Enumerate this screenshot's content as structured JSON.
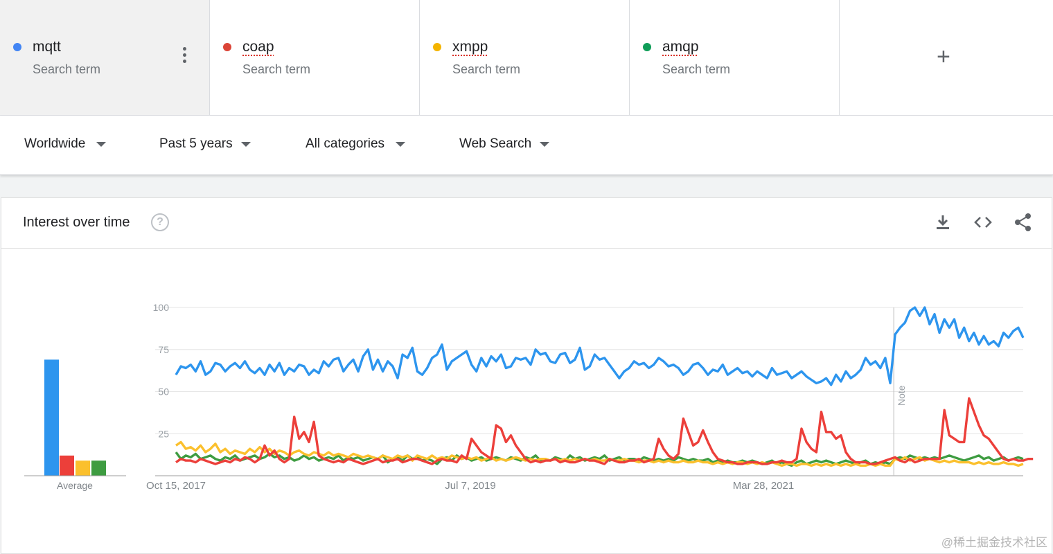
{
  "terms": [
    {
      "name": "mqtt",
      "sub": "Search term",
      "color": "#4285f4"
    },
    {
      "name": "coap",
      "sub": "Search term",
      "color": "#db4437"
    },
    {
      "name": "xmpp",
      "sub": "Search term",
      "color": "#f4b400"
    },
    {
      "name": "amqp",
      "sub": "Search term",
      "color": "#0f9d58"
    }
  ],
  "add_term": "+",
  "filters": {
    "region": "Worldwide",
    "time": "Past 5 years",
    "category": "All categories",
    "search_type": "Web Search"
  },
  "card": {
    "title": "Interest over time",
    "help": "?",
    "icons": [
      "download-icon",
      "embed-code-icon",
      "share-icon"
    ]
  },
  "chart_data": {
    "type": "line",
    "x_tick_labels": [
      "Oct 15, 2017",
      "Jul 7, 2019",
      "Mar 28, 2021"
    ],
    "y_ticks": [
      25,
      50,
      75,
      100
    ],
    "ylim": [
      0,
      100
    ],
    "note_label": "Note",
    "average_label": "Average",
    "averages": [
      {
        "name": "mqtt",
        "value": 69,
        "color": "#2d95ee"
      },
      {
        "name": "coap",
        "value": 12,
        "color": "#ec3f3a"
      },
      {
        "name": "xmpp",
        "value": 9,
        "color": "#fbc02d"
      },
      {
        "name": "amqp",
        "value": 9,
        "color": "#3e9c41"
      }
    ],
    "series": [
      {
        "name": "mqtt",
        "color": "#2d95ee",
        "values": [
          60,
          65,
          64,
          66,
          62,
          68,
          60,
          62,
          67,
          66,
          62,
          65,
          67,
          64,
          68,
          63,
          61,
          64,
          60,
          66,
          62,
          67,
          60,
          64,
          62,
          66,
          65,
          60,
          63,
          61,
          68,
          65,
          69,
          70,
          62,
          66,
          69,
          62,
          71,
          75,
          63,
          69,
          62,
          68,
          65,
          58,
          72,
          70,
          76,
          62,
          60,
          64,
          70,
          72,
          78,
          63,
          68,
          70,
          72,
          74,
          66,
          62,
          70,
          65,
          71,
          68,
          72,
          64,
          65,
          70,
          69,
          70,
          66,
          75,
          72,
          73,
          68,
          67,
          72,
          73,
          67,
          69,
          76,
          63,
          65,
          72,
          69,
          70,
          66,
          62,
          58,
          62,
          64,
          68,
          66,
          67,
          64,
          66,
          70,
          68,
          65,
          66,
          64,
          60,
          62,
          66,
          67,
          64,
          60,
          63,
          62,
          66,
          60,
          62,
          64,
          61,
          62,
          59,
          62,
          60,
          58,
          64,
          60,
          61,
          62,
          58,
          60,
          62,
          59,
          57,
          55,
          56,
          58,
          54,
          60,
          56,
          62,
          58,
          60,
          63,
          70,
          66,
          68,
          64,
          70,
          55,
          84,
          88,
          91,
          98,
          100,
          95,
          100,
          90,
          96,
          85,
          93,
          88,
          93,
          82,
          88,
          80,
          85,
          78,
          83,
          78,
          80,
          77,
          85,
          82,
          86,
          88,
          82
        ]
      },
      {
        "name": "coap",
        "color": "#ec3f3a",
        "values": [
          8,
          10,
          9,
          9,
          8,
          10,
          9,
          8,
          7,
          8,
          9,
          8,
          10,
          9,
          11,
          10,
          8,
          10,
          18,
          12,
          15,
          10,
          8,
          10,
          35,
          22,
          26,
          20,
          32,
          12,
          10,
          9,
          8,
          9,
          8,
          10,
          9,
          8,
          7,
          8,
          9,
          10,
          8,
          9,
          9,
          10,
          8,
          9,
          10,
          10,
          9,
          8,
          7,
          9,
          10,
          9,
          9,
          8,
          12,
          10,
          22,
          18,
          14,
          12,
          10,
          30,
          28,
          20,
          24,
          18,
          14,
          10,
          8,
          9,
          8,
          9,
          9,
          10,
          8,
          9,
          8,
          8,
          9,
          10,
          9,
          9,
          8,
          7,
          10,
          9,
          8,
          8,
          9,
          9,
          10,
          8,
          9,
          10,
          22,
          16,
          12,
          10,
          13,
          34,
          26,
          18,
          20,
          27,
          20,
          14,
          10,
          9,
          8,
          8,
          7,
          7,
          8,
          8,
          8,
          7,
          7,
          8,
          8,
          9,
          8,
          8,
          10,
          28,
          20,
          16,
          14,
          38,
          26,
          26,
          22,
          24,
          14,
          10,
          8,
          8,
          8,
          7,
          7,
          8,
          9,
          10,
          11,
          9,
          8,
          10,
          8,
          9,
          10,
          10,
          10,
          10,
          39,
          24,
          22,
          20,
          20,
          46,
          38,
          30,
          24,
          22,
          18,
          14,
          10,
          9,
          10,
          9,
          9,
          10,
          10
        ]
      },
      {
        "name": "xmpp",
        "color": "#fbc02d",
        "values": [
          18,
          20,
          16,
          17,
          15,
          18,
          14,
          16,
          19,
          14,
          16,
          13,
          15,
          14,
          13,
          16,
          14,
          17,
          14,
          16,
          13,
          15,
          14,
          12,
          14,
          15,
          13,
          12,
          14,
          13,
          12,
          14,
          12,
          13,
          12,
          11,
          13,
          12,
          11,
          12,
          11,
          10,
          12,
          11,
          10,
          12,
          11,
          12,
          9,
          12,
          11,
          10,
          12,
          10,
          11,
          10,
          12,
          11,
          10,
          11,
          10,
          11,
          9,
          10,
          11,
          9,
          10,
          9,
          10,
          11,
          10,
          9,
          10,
          9,
          10,
          10,
          9,
          10,
          9,
          10,
          9,
          10,
          9,
          10,
          9,
          10,
          9,
          9,
          10,
          9,
          9,
          10,
          9,
          9,
          8,
          9,
          9,
          8,
          9,
          8,
          9,
          8,
          8,
          9,
          8,
          8,
          9,
          8,
          8,
          7,
          8,
          7,
          8,
          7,
          8,
          8,
          7,
          8,
          7,
          8,
          7,
          8,
          7,
          6,
          7,
          7,
          6,
          7,
          7,
          6,
          7,
          6,
          7,
          6,
          7,
          6,
          7,
          6,
          7,
          6,
          6,
          7,
          6,
          7,
          6,
          6,
          10,
          9,
          11,
          9,
          10,
          11,
          9,
          10,
          9,
          8,
          9,
          8,
          9,
          8,
          8,
          8,
          7,
          8,
          7,
          8,
          7,
          7,
          8,
          7,
          7,
          6,
          7
        ]
      },
      {
        "name": "amqp",
        "color": "#3e9c41",
        "values": [
          14,
          10,
          12,
          11,
          13,
          10,
          11,
          12,
          10,
          9,
          11,
          10,
          12,
          9,
          10,
          11,
          12,
          10,
          11,
          13,
          11,
          12,
          10,
          11,
          9,
          10,
          12,
          10,
          11,
          9,
          10,
          11,
          10,
          12,
          9,
          11,
          10,
          11,
          9,
          10,
          11,
          10,
          12,
          8,
          10,
          11,
          9,
          12,
          10,
          11,
          9,
          10,
          9,
          7,
          10,
          11,
          9,
          12,
          10,
          11,
          9,
          10,
          11,
          9,
          10,
          11,
          10,
          9,
          11,
          10,
          9,
          11,
          10,
          12,
          9,
          10,
          9,
          11,
          10,
          9,
          12,
          10,
          11,
          9,
          10,
          11,
          10,
          12,
          9,
          10,
          11,
          9,
          10,
          10,
          9,
          11,
          10,
          9,
          10,
          9,
          10,
          9,
          11,
          10,
          9,
          10,
          9,
          9,
          10,
          8,
          9,
          8,
          9,
          8,
          8,
          9,
          8,
          9,
          8,
          7,
          8,
          9,
          7,
          8,
          7,
          6,
          8,
          9,
          7,
          8,
          9,
          8,
          9,
          8,
          7,
          8,
          9,
          8,
          7,
          8,
          9,
          7,
          8,
          7,
          8,
          7,
          10,
          11,
          10,
          12,
          11,
          10,
          11,
          10,
          11,
          10,
          11,
          12,
          11,
          10,
          9,
          10,
          11,
          12,
          10,
          11,
          9,
          10,
          11,
          9,
          10,
          11,
          10
        ]
      }
    ]
  },
  "watermark": "@稀土掘金技术社区"
}
